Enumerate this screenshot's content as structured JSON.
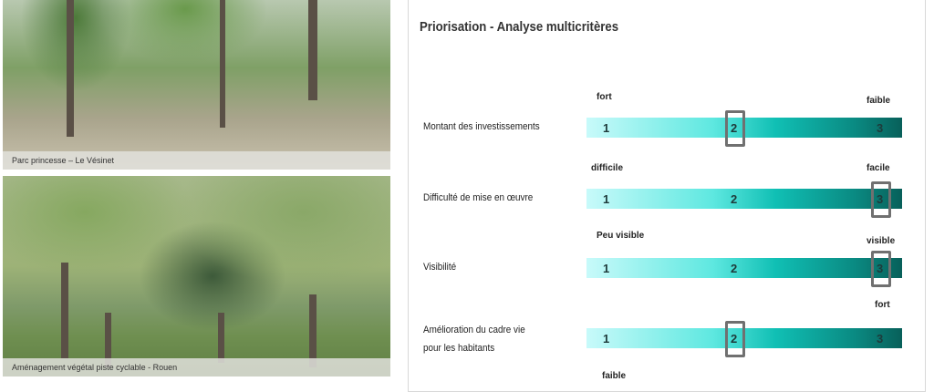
{
  "photos": [
    {
      "caption": "Parc princesse – Le Vésinet"
    },
    {
      "caption": "Aménagement végétal piste cyclable - Rouen"
    }
  ],
  "panel": {
    "title": "Priorisation - Analyse multicritères",
    "scale": [
      "1",
      "2",
      "3"
    ],
    "criteria": [
      {
        "label": "Montant des investissements",
        "low": "fort",
        "high": "faible",
        "selected": 2
      },
      {
        "label": "Difficulté de mise en œuvre",
        "low": "difficile",
        "high": "facile",
        "selected": 3
      },
      {
        "label": "Visibilité",
        "low": "Peu visible",
        "high": "visible",
        "selected": 3
      },
      {
        "label": "Amélioration du cadre vie",
        "label2": "pour les habitants",
        "low": "",
        "high": "fort",
        "selected": 2
      }
    ],
    "next_low": "faible"
  },
  "colors": {
    "gradient_start": "#c8fafa",
    "gradient_end": "#08605a",
    "highlight": "#707070"
  }
}
